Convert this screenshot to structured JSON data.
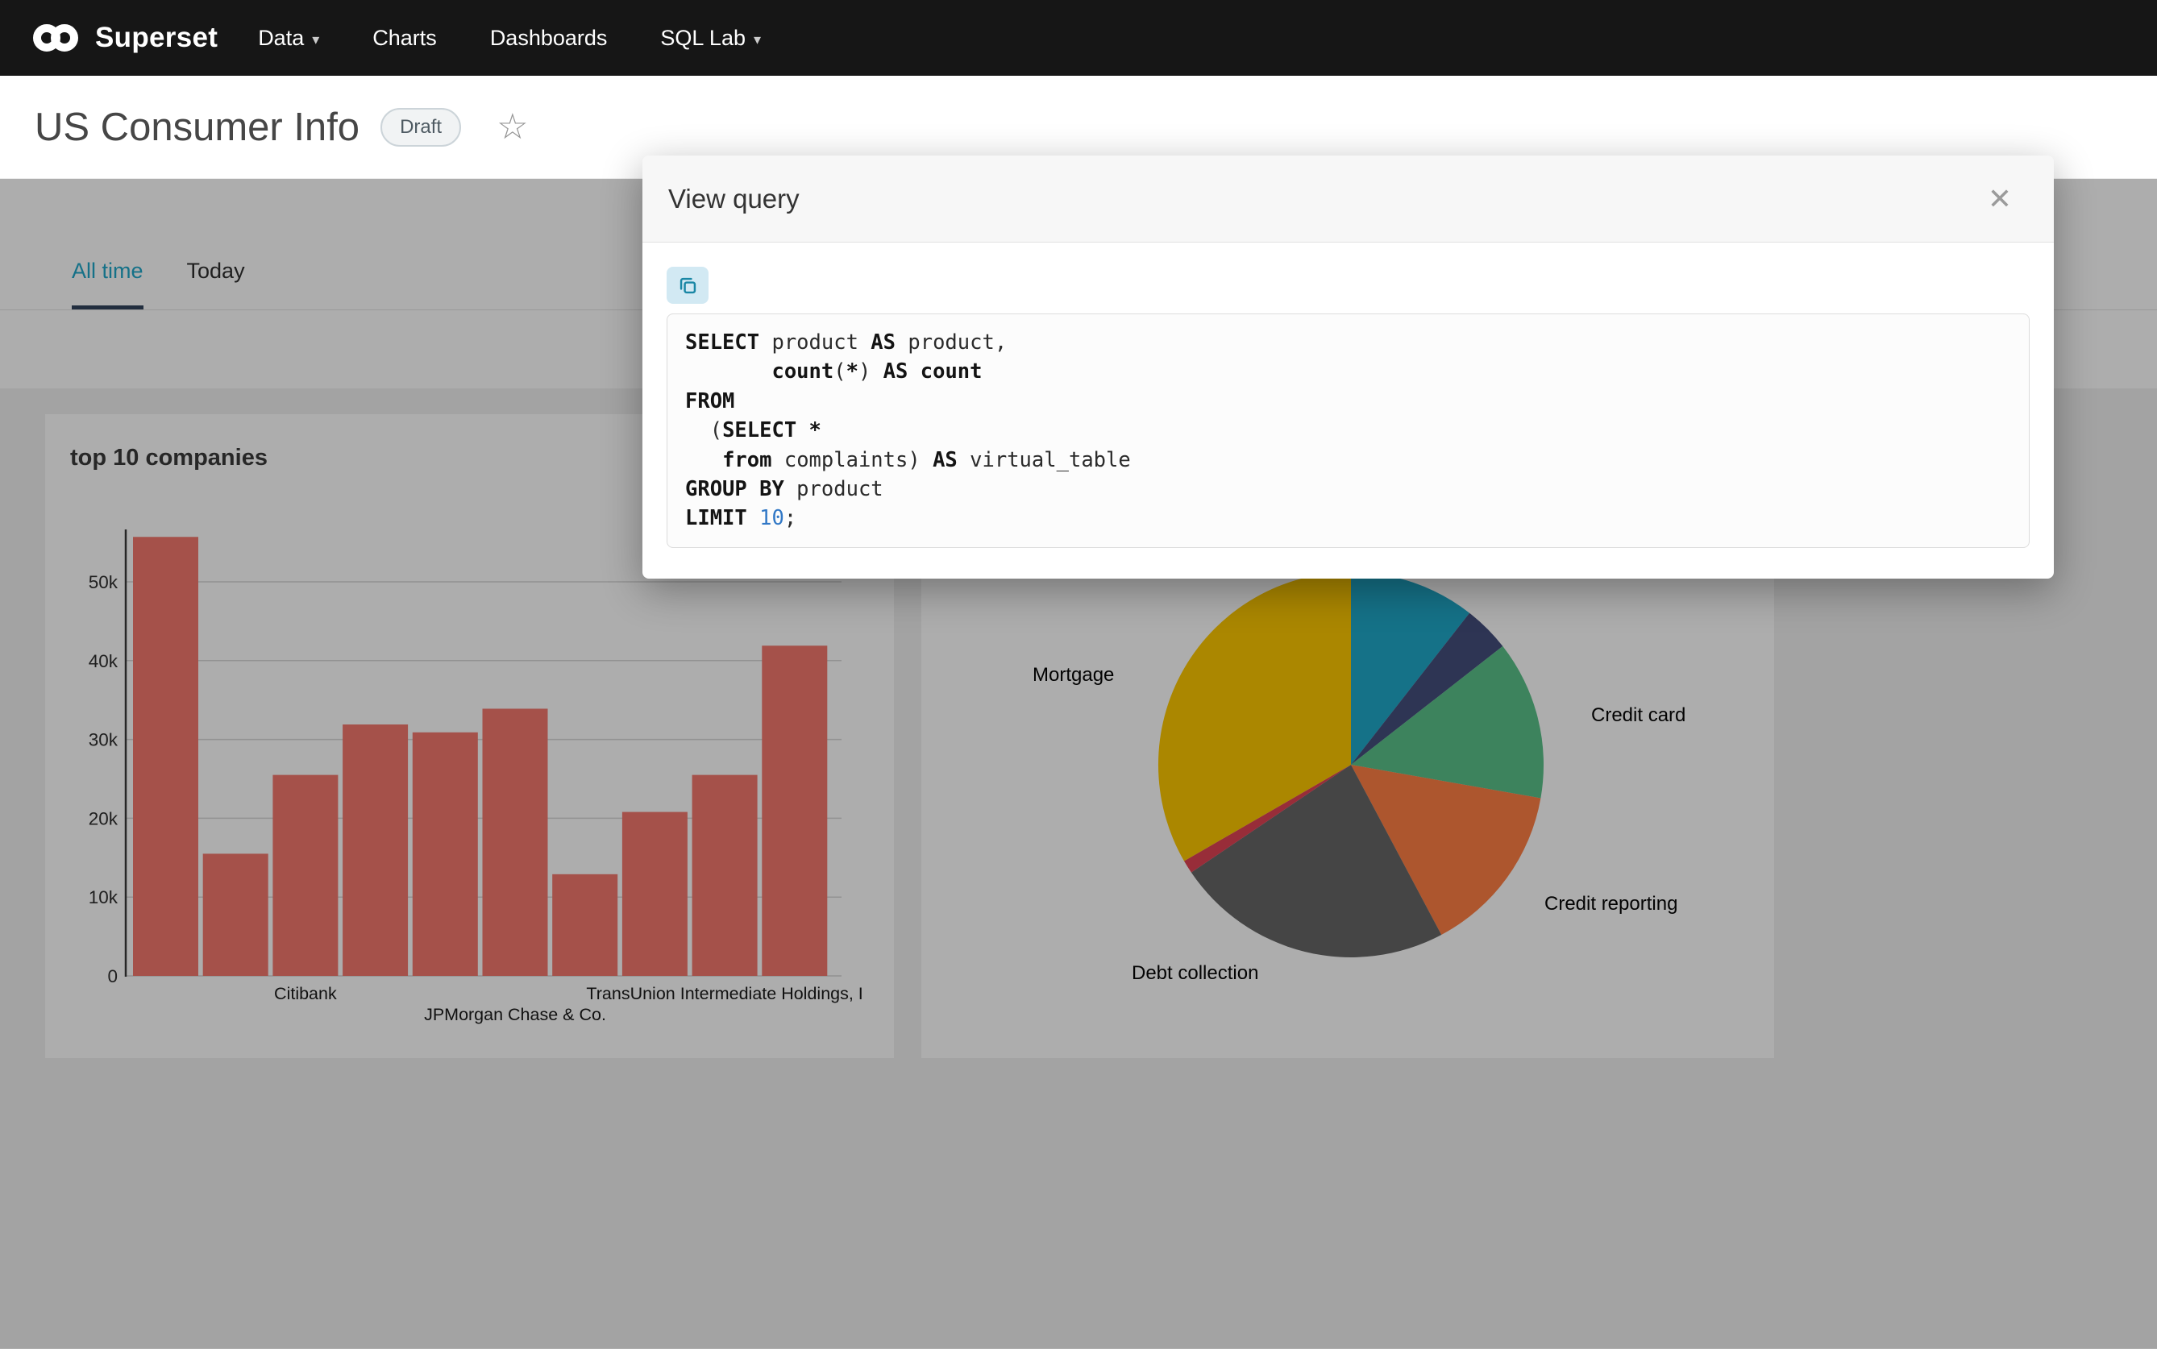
{
  "nav": {
    "brand": "Superset",
    "caret_glyph": "▾",
    "items": [
      {
        "label": "Data",
        "caret": true
      },
      {
        "label": "Charts",
        "caret": false
      },
      {
        "label": "Dashboards",
        "caret": false
      },
      {
        "label": "SQL Lab",
        "caret": true
      }
    ]
  },
  "header": {
    "title": "US Consumer Info",
    "badge": "Draft",
    "star_glyph": "☆"
  },
  "tabs": {
    "items": [
      {
        "label": "All time",
        "active": true
      },
      {
        "label": "Today",
        "active": false
      }
    ]
  },
  "colors": {
    "accent": "#20a7c9",
    "nav_bg": "#161616"
  },
  "modal": {
    "title": "View query",
    "close_glyph": "✕",
    "sql_lines": [
      [
        {
          "t": "SELECT",
          "s": "kw"
        },
        {
          "t": " product ",
          "s": "p"
        },
        {
          "t": "AS",
          "s": "kw"
        },
        {
          "t": " product,",
          "s": "p"
        }
      ],
      [
        {
          "t": "       ",
          "s": "p"
        },
        {
          "t": "count",
          "s": "kw"
        },
        {
          "t": "(",
          "s": "p"
        },
        {
          "t": "*",
          "s": "kw"
        },
        {
          "t": ") ",
          "s": "p"
        },
        {
          "t": "AS",
          "s": "kw"
        },
        {
          "t": " ",
          "s": "p"
        },
        {
          "t": "count",
          "s": "kw"
        }
      ],
      [
        {
          "t": "FROM",
          "s": "kw"
        }
      ],
      [
        {
          "t": "  (",
          "s": "p"
        },
        {
          "t": "SELECT",
          "s": "kw"
        },
        {
          "t": " ",
          "s": "p"
        },
        {
          "t": "*",
          "s": "kw"
        }
      ],
      [
        {
          "t": "   ",
          "s": "p"
        },
        {
          "t": "from",
          "s": "kw"
        },
        {
          "t": " complaints) ",
          "s": "p"
        },
        {
          "t": "AS",
          "s": "kw"
        },
        {
          "t": " virtual_table",
          "s": "p"
        }
      ],
      [
        {
          "t": "GROUP BY",
          "s": "kw"
        },
        {
          "t": " product",
          "s": "p"
        }
      ],
      [
        {
          "t": "LIMIT",
          "s": "kw"
        },
        {
          "t": " ",
          "s": "p"
        },
        {
          "t": "10",
          "s": "num"
        },
        {
          "t": ";",
          "s": "p"
        }
      ]
    ]
  },
  "chart_data": [
    {
      "type": "bar",
      "title": "top 10 companies",
      "bar_color": "#f3786d",
      "xlabel": "",
      "ylabel": "",
      "ylim": [
        0,
        57000
      ],
      "y_ticks": [
        "0",
        "10k",
        "20k",
        "30k",
        "40k",
        "50k"
      ],
      "y_tick_interval": 10000,
      "grid": true,
      "categories": [
        "",
        "",
        "Citibank",
        "",
        "",
        "JPMorgan Chase & Co.",
        "",
        "",
        "TransUnion Intermediate Holdings, I",
        ""
      ],
      "values": [
        55700,
        15500,
        25500,
        31900,
        30900,
        33900,
        12900,
        20800,
        25500,
        41900
      ]
    },
    {
      "type": "pie",
      "title": "",
      "legend_position": "none",
      "slices": [
        {
          "label": "",
          "color": "#1FA8C9",
          "degrees": 38
        },
        {
          "label": "",
          "color": "#454E7C",
          "degrees": 14
        },
        {
          "label": "Credit card",
          "color": "#5AC189",
          "degrees": 48
        },
        {
          "label": "Credit reporting",
          "color": "#FF7F44",
          "degrees": 52
        },
        {
          "label": "Debt collection",
          "color": "#666666",
          "degrees": 84
        },
        {
          "label": "",
          "color": "#E04355",
          "degrees": 4
        },
        {
          "label": "Mortgage",
          "color": "#FCC700",
          "degrees": 120
        }
      ]
    }
  ]
}
